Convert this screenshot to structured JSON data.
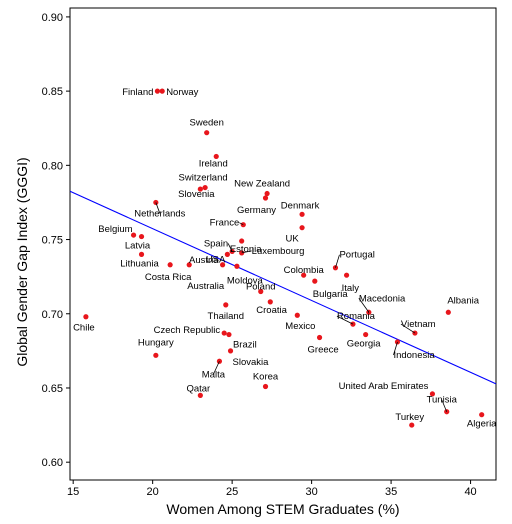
{
  "chart_data": {
    "type": "scatter",
    "title": "",
    "xlabel": "Women Among STEM Graduates (%)",
    "ylabel": "Global Gender Gap Index (GGGI)",
    "xlim": [
      14.8,
      41.6
    ],
    "ylim": [
      0.588,
      0.906
    ],
    "xticks": [
      "15",
      "20",
      "25",
      "30",
      "35",
      "40"
    ],
    "yticks": [
      "0.60",
      "0.65",
      "0.70",
      "0.75",
      "0.80",
      "0.85",
      "0.90"
    ],
    "grid": false,
    "point_color": "#e8161c",
    "trend_color": "#0000ff",
    "trendline": {
      "x": [
        14.8,
        41.6
      ],
      "y": [
        0.7825,
        0.6528
      ]
    },
    "points": [
      {
        "label": "Finland",
        "x": 20.3,
        "y": 0.85
      },
      {
        "label": "Norway",
        "x": 20.6,
        "y": 0.85
      },
      {
        "label": "Sweden",
        "x": 23.4,
        "y": 0.822
      },
      {
        "label": "Ireland",
        "x": 24.0,
        "y": 0.806
      },
      {
        "label": "Switzerland",
        "x": 23.3,
        "y": 0.785
      },
      {
        "label": "Slovenia",
        "x": 23.0,
        "y": 0.784
      },
      {
        "label": "New Zealand",
        "x": 27.2,
        "y": 0.781
      },
      {
        "label": "Germany",
        "x": 27.1,
        "y": 0.778
      },
      {
        "label": "Netherlands",
        "x": 20.2,
        "y": 0.775
      },
      {
        "label": "Denmark",
        "x": 29.4,
        "y": 0.767
      },
      {
        "label": "France",
        "x": 25.7,
        "y": 0.76
      },
      {
        "label": "UK",
        "x": 29.4,
        "y": 0.758
      },
      {
        "label": "Belgium",
        "x": 18.8,
        "y": 0.753
      },
      {
        "label": "Latvia",
        "x": 19.3,
        "y": 0.752
      },
      {
        "label": "Estonia",
        "x": 25.6,
        "y": 0.749
      },
      {
        "label": "Spain",
        "x": 25.0,
        "y": 0.742
      },
      {
        "label": "Luxembourg",
        "x": 25.6,
        "y": 0.741
      },
      {
        "label": "USA",
        "x": 24.7,
        "y": 0.74
      },
      {
        "label": "Portugal",
        "x": 31.5,
        "y": 0.731
      },
      {
        "label": "Lithuania",
        "x": 19.3,
        "y": 0.74
      },
      {
        "label": "Austria",
        "x": 24.4,
        "y": 0.733
      },
      {
        "label": "Moldova",
        "x": 25.3,
        "y": 0.732
      },
      {
        "label": "Costa Rica",
        "x": 21.1,
        "y": 0.733
      },
      {
        "label": "Australia",
        "x": 22.3,
        "y": 0.733
      },
      {
        "label": "Colombia",
        "x": 29.5,
        "y": 0.726
      },
      {
        "label": "Bulgaria",
        "x": 30.2,
        "y": 0.722
      },
      {
        "label": "Italy",
        "x": 32.2,
        "y": 0.726
      },
      {
        "label": "Poland",
        "x": 26.8,
        "y": 0.715
      },
      {
        "label": "Croatia",
        "x": 27.4,
        "y": 0.708
      },
      {
        "label": "Thailand",
        "x": 24.6,
        "y": 0.706
      },
      {
        "label": "Macedonia",
        "x": 33.6,
        "y": 0.701
      },
      {
        "label": "Albania",
        "x": 38.6,
        "y": 0.701
      },
      {
        "label": "Romania",
        "x": 32.6,
        "y": 0.693
      },
      {
        "label": "Mexico",
        "x": 29.1,
        "y": 0.699
      },
      {
        "label": "Chile",
        "x": 15.8,
        "y": 0.698
      },
      {
        "label": "Vietnam",
        "x": 36.5,
        "y": 0.687
      },
      {
        "label": "Czech Republic",
        "x": 24.5,
        "y": 0.687
      },
      {
        "label": "Brazil",
        "x": 24.8,
        "y": 0.686
      },
      {
        "label": "Georgia",
        "x": 33.4,
        "y": 0.686
      },
      {
        "label": "Greece",
        "x": 30.5,
        "y": 0.684
      },
      {
        "label": "Indonesia",
        "x": 35.4,
        "y": 0.681
      },
      {
        "label": "Hungary",
        "x": 20.2,
        "y": 0.672
      },
      {
        "label": "Slovakia",
        "x": 24.9,
        "y": 0.675
      },
      {
        "label": "Malta",
        "x": 24.2,
        "y": 0.668
      },
      {
        "label": "Korea",
        "x": 27.1,
        "y": 0.651
      },
      {
        "label": "United Arab Emirates",
        "x": 37.6,
        "y": 0.646
      },
      {
        "label": "Qatar",
        "x": 23.0,
        "y": 0.645
      },
      {
        "label": "Tunisia",
        "x": 38.5,
        "y": 0.634
      },
      {
        "label": "Algeria",
        "x": 40.7,
        "y": 0.632
      },
      {
        "label": "Turkey",
        "x": 36.3,
        "y": 0.625
      }
    ]
  }
}
